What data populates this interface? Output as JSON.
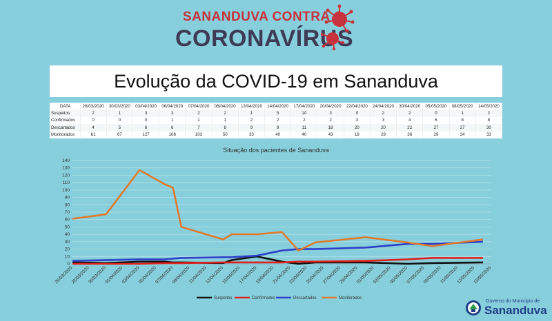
{
  "header": {
    "line1": "SANANDUVA CONTRA O",
    "line2": "CORONAVÍRUS"
  },
  "title": "Evolução da COVID-19 em Sananduva",
  "table": {
    "row_labels": [
      "DATA",
      "Suspeitos",
      "Confirmados",
      "Descartados",
      "Monitorados"
    ],
    "dates": [
      "26/03/2020",
      "30/03/2020",
      "03/04/2020",
      "06/04/2020",
      "07/04/2020",
      "08/04/2020",
      "13/04/2020",
      "14/04/2020",
      "17/04/2020",
      "20/04/2020",
      "22/04/2020",
      "24/04/2020",
      "30/04/2020",
      "05/05/2020",
      "08/05/2020",
      "14/05/2020"
    ],
    "suspeitos": [
      2,
      1,
      3,
      3,
      2,
      2,
      1,
      5,
      10,
      3,
      0,
      2,
      2,
      0,
      1,
      2
    ],
    "confirmados": [
      0,
      0,
      0,
      1,
      1,
      1,
      2,
      2,
      2,
      2,
      3,
      3,
      4,
      6,
      8,
      8
    ],
    "descartados": [
      4,
      5,
      6,
      6,
      7,
      8,
      9,
      9,
      11,
      18,
      20,
      20,
      22,
      27,
      27,
      30
    ],
    "monitorados": [
      61,
      67,
      127,
      108,
      103,
      50,
      33,
      40,
      40,
      43,
      18,
      29,
      36,
      29,
      24,
      33
    ]
  },
  "chart_data": {
    "type": "line",
    "title": "Situação dos pacientes de Sananduva",
    "ylim": [
      0,
      140
    ],
    "yticks": [
      0,
      10,
      20,
      30,
      40,
      50,
      60,
      70,
      80,
      90,
      100,
      110,
      120,
      130,
      140
    ],
    "x": [
      "26/03/2020",
      "28/03/2020",
      "30/03/2020",
      "01/04/2020",
      "03/04/2020",
      "05/04/2020",
      "07/04/2020",
      "09/04/2020",
      "11/04/2020",
      "13/04/2020",
      "15/04/2020",
      "17/04/2020",
      "19/04/2020",
      "21/04/2020",
      "23/04/2020",
      "25/04/2020",
      "27/04/2020",
      "29/04/2020",
      "01/05/2020",
      "03/05/2020",
      "05/05/2020",
      "07/05/2020",
      "09/05/2020",
      "11/05/2020",
      "13/05/2020",
      "15/05/2020"
    ],
    "series": [
      {
        "name": "Suspeitos",
        "color": "#111111",
        "points": [
          [
            "26/03/2020",
            2
          ],
          [
            "30/03/2020",
            1
          ],
          [
            "03/04/2020",
            3
          ],
          [
            "06/04/2020",
            3
          ],
          [
            "07/04/2020",
            2
          ],
          [
            "08/04/2020",
            2
          ],
          [
            "13/04/2020",
            1
          ],
          [
            "14/04/2020",
            5
          ],
          [
            "17/04/2020",
            10
          ],
          [
            "20/04/2020",
            3
          ],
          [
            "22/04/2020",
            0
          ],
          [
            "24/04/2020",
            2
          ],
          [
            "30/04/2020",
            2
          ],
          [
            "05/05/2020",
            0
          ],
          [
            "08/05/2020",
            1
          ],
          [
            "14/05/2020",
            2
          ]
        ]
      },
      {
        "name": "Confirmados",
        "color": "#E0201B",
        "points": [
          [
            "26/03/2020",
            0
          ],
          [
            "30/03/2020",
            0
          ],
          [
            "03/04/2020",
            0
          ],
          [
            "06/04/2020",
            1
          ],
          [
            "07/04/2020",
            1
          ],
          [
            "08/04/2020",
            1
          ],
          [
            "13/04/2020",
            2
          ],
          [
            "14/04/2020",
            2
          ],
          [
            "17/04/2020",
            2
          ],
          [
            "20/04/2020",
            2
          ],
          [
            "22/04/2020",
            3
          ],
          [
            "24/04/2020",
            3
          ],
          [
            "30/04/2020",
            4
          ],
          [
            "05/05/2020",
            6
          ],
          [
            "08/05/2020",
            8
          ],
          [
            "14/05/2020",
            8
          ]
        ]
      },
      {
        "name": "Descartados",
        "color": "#2E3FC8",
        "points": [
          [
            "26/03/2020",
            4
          ],
          [
            "30/03/2020",
            5
          ],
          [
            "03/04/2020",
            6
          ],
          [
            "06/04/2020",
            6
          ],
          [
            "07/04/2020",
            7
          ],
          [
            "08/04/2020",
            8
          ],
          [
            "13/04/2020",
            9
          ],
          [
            "14/04/2020",
            9
          ],
          [
            "17/04/2020",
            11
          ],
          [
            "20/04/2020",
            18
          ],
          [
            "22/04/2020",
            20
          ],
          [
            "24/04/2020",
            20
          ],
          [
            "30/04/2020",
            22
          ],
          [
            "05/05/2020",
            27
          ],
          [
            "08/05/2020",
            27
          ],
          [
            "14/05/2020",
            30
          ]
        ]
      },
      {
        "name": "Monitorados",
        "color": "#E07A2C",
        "points": [
          [
            "26/03/2020",
            61
          ],
          [
            "30/03/2020",
            67
          ],
          [
            "03/04/2020",
            127
          ],
          [
            "06/04/2020",
            108
          ],
          [
            "07/04/2020",
            103
          ],
          [
            "08/04/2020",
            50
          ],
          [
            "13/04/2020",
            33
          ],
          [
            "14/04/2020",
            40
          ],
          [
            "17/04/2020",
            40
          ],
          [
            "20/04/2020",
            43
          ],
          [
            "22/04/2020",
            18
          ],
          [
            "24/04/2020",
            29
          ],
          [
            "30/04/2020",
            36
          ],
          [
            "05/05/2020",
            29
          ],
          [
            "08/05/2020",
            24
          ],
          [
            "14/05/2020",
            33
          ]
        ]
      }
    ],
    "legend": "bottom",
    "grid": true
  },
  "logo": {
    "small": "Governo do Município de",
    "big": "Sananduva"
  },
  "colors": {
    "background": "#87CFDC",
    "brand_red": "#C8323C",
    "brand_dark": "#3E3A56",
    "logo_blue": "#1F3E86"
  },
  "icons": [
    "virus-icon",
    "municipal-logo-icon"
  ]
}
